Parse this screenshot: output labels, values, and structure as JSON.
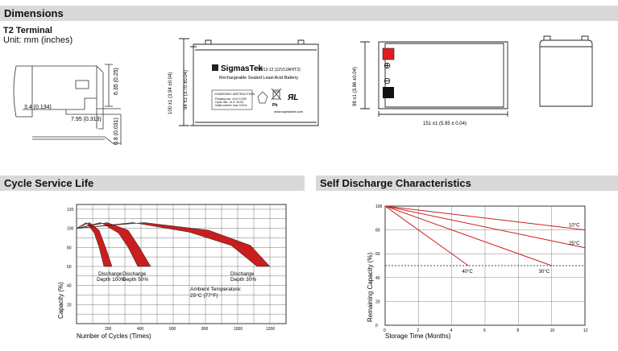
{
  "sections": {
    "dimensions": "Dimensions",
    "cycle": "Cycle Service Life",
    "self_discharge": "Self Discharge Characteristics"
  },
  "terminal": {
    "title": "T2 Terminal",
    "unit": "Unit: mm (inches)",
    "dim_width": "3.4 (0.134)",
    "dim_offset": "7.95 (0.313)",
    "dim_height": "6.35 (0.25)",
    "dim_thickness": "0.8 (0.031)"
  },
  "battery": {
    "brand": "SigmasTek",
    "model": "SP12-12 (12V12AH/T2)",
    "subtitle": "Rechargeable Sealed Lead-Acid Battery",
    "charging_title": "CHARGING INSTRUCTION",
    "charging_lines": [
      "Floating use: 13.6~13.8V",
      "Cycle use: 14.4~15.0V",
      "Initial current: max 3.0CA"
    ],
    "website": "www.sigmastek.com",
    "pb_label": "Pb",
    "dim_total_height": "100 ±1 (3.94 ±0.04)",
    "dim_container_height": "94 ±1 (3.70 ±0.04)",
    "dim_side_height": "98 ±1 (3.86 ±0.04)",
    "dim_length": "151 ±1 (5.95 ± 0.04)",
    "plus_symbol": "⊕",
    "minus_symbol": "⊖"
  },
  "cycle_chart": {
    "chart_data": {
      "type": "line",
      "ylabel": "Capacity (%)",
      "xlabel": "Number of Cycles (Times)",
      "xlim": [
        0,
        1300
      ],
      "ylim": [
        0,
        125
      ],
      "x_ticks": [
        "200",
        "400",
        "600",
        "800",
        "1000",
        "1200"
      ],
      "y_ticks": [
        "20",
        "40",
        "60",
        "80",
        "100",
        "120"
      ],
      "series": [
        {
          "name": "Discharge Depth 100%",
          "x": [
            0,
            100,
            150,
            200
          ],
          "y": [
            100,
            105,
            85,
            60
          ]
        },
        {
          "name": "Discharge Depth 50%",
          "x": [
            0,
            200,
            300,
            450
          ],
          "y": [
            100,
            105,
            90,
            60
          ]
        },
        {
          "name": "Discharge Depth 30%",
          "x": [
            0,
            500,
            900,
            1200
          ],
          "y": [
            100,
            105,
            90,
            60
          ]
        }
      ],
      "annotations": [
        "Discharge Depth 100%",
        "Discharge Depth 50%",
        "Discharge Depth 30%",
        "Ambient Temperature: 25°C (77°F)"
      ]
    },
    "labels": {
      "d100_a": "Discharge",
      "d100_b": "Depth 100%",
      "d50_a": "Discharge",
      "d50_b": "Depth 50%",
      "d30_a": "Discharge",
      "d30_b": "Depth 30%",
      "amb_a": "Ambient Temperature:",
      "amb_b": "25°C (77°F)"
    }
  },
  "self_chart": {
    "chart_data": {
      "type": "line",
      "ylabel": "Remaining Capacity (%)",
      "xlabel": "Storage Time (Months)",
      "xlim": [
        0,
        12
      ],
      "ylim": [
        0,
        100
      ],
      "x_ticks": [
        "0",
        "2",
        "4",
        "6",
        "8",
        "10",
        "12"
      ],
      "y_ticks": [
        "0",
        "20",
        "40",
        "60",
        "80",
        "100"
      ],
      "reference_line": 50,
      "series": [
        {
          "name": "10°C",
          "x": [
            0,
            12
          ],
          "y": [
            100,
            80
          ]
        },
        {
          "name": "25°C",
          "x": [
            0,
            12
          ],
          "y": [
            100,
            65
          ]
        },
        {
          "name": "30°C",
          "x": [
            0,
            10
          ],
          "y": [
            100,
            50
          ]
        },
        {
          "name": "40°C",
          "x": [
            0,
            5
          ],
          "y": [
            100,
            50
          ]
        }
      ]
    }
  }
}
